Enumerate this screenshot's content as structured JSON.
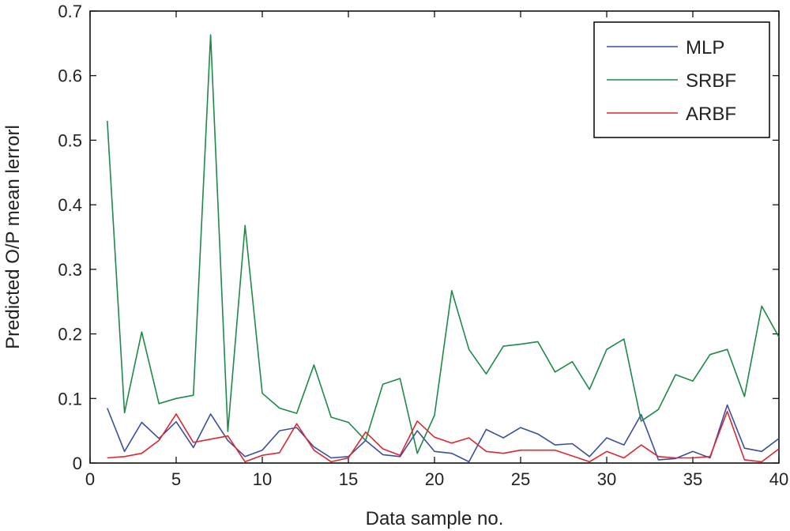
{
  "chart_data": {
    "type": "line",
    "title": "",
    "xlabel": "Data sample no.",
    "ylabel": "Predicted O/P mean lerrorl",
    "xlim": [
      0,
      40
    ],
    "ylim": [
      0,
      0.7
    ],
    "xticks": [
      0,
      5,
      10,
      15,
      20,
      25,
      30,
      35,
      40
    ],
    "xtick_labels": [
      "0",
      "5",
      "10",
      "15",
      "20",
      "25",
      "30",
      "35",
      "40"
    ],
    "yticks": [
      0,
      0.1,
      0.2,
      0.3,
      0.4,
      0.5,
      0.6,
      0.7
    ],
    "ytick_labels": [
      "0",
      "0.1",
      "0.2",
      "0.3",
      "0.4",
      "0.5",
      "0.6",
      "0.7"
    ],
    "grid": false,
    "legend_position": "top-right",
    "x": [
      1,
      2,
      3,
      4,
      5,
      6,
      7,
      8,
      9,
      10,
      11,
      12,
      13,
      14,
      15,
      16,
      17,
      18,
      19,
      20,
      21,
      22,
      23,
      24,
      25,
      26,
      27,
      28,
      29,
      30,
      31,
      32,
      33,
      34,
      35,
      36,
      37,
      38,
      39,
      40
    ],
    "series": [
      {
        "name": "MLP",
        "color": "#3a4fa0",
        "values": [
          0.085,
          0.018,
          0.063,
          0.038,
          0.064,
          0.024,
          0.076,
          0.035,
          0.01,
          0.02,
          0.05,
          0.055,
          0.025,
          0.008,
          0.01,
          0.035,
          0.013,
          0.01,
          0.05,
          0.018,
          0.015,
          0.002,
          0.052,
          0.039,
          0.055,
          0.045,
          0.028,
          0.03,
          0.01,
          0.039,
          0.028,
          0.075,
          0.005,
          0.007,
          0.018,
          0.008,
          0.09,
          0.023,
          0.018,
          0.038
        ]
      },
      {
        "name": "SRBF",
        "color": "#1e8a48",
        "values": [
          0.53,
          0.078,
          0.203,
          0.092,
          0.1,
          0.105,
          0.663,
          0.049,
          0.368,
          0.108,
          0.085,
          0.077,
          0.152,
          0.071,
          0.063,
          0.035,
          0.122,
          0.131,
          0.015,
          0.074,
          0.267,
          0.176,
          0.138,
          0.181,
          0.184,
          0.188,
          0.141,
          0.157,
          0.114,
          0.176,
          0.192,
          0.065,
          0.083,
          0.137,
          0.127,
          0.168,
          0.176,
          0.103,
          0.243,
          0.195
        ]
      },
      {
        "name": "ARBF",
        "color": "#e0262e",
        "values": [
          0.008,
          0.01,
          0.015,
          0.035,
          0.076,
          0.032,
          0.037,
          0.042,
          0.002,
          0.012,
          0.016,
          0.061,
          0.02,
          0.002,
          0.008,
          0.048,
          0.022,
          0.012,
          0.065,
          0.04,
          0.031,
          0.039,
          0.018,
          0.015,
          0.02,
          0.02,
          0.02,
          0.011,
          0.002,
          0.018,
          0.008,
          0.028,
          0.01,
          0.008,
          0.008,
          0.01,
          0.08,
          0.005,
          0.002,
          0.022
        ]
      }
    ]
  }
}
